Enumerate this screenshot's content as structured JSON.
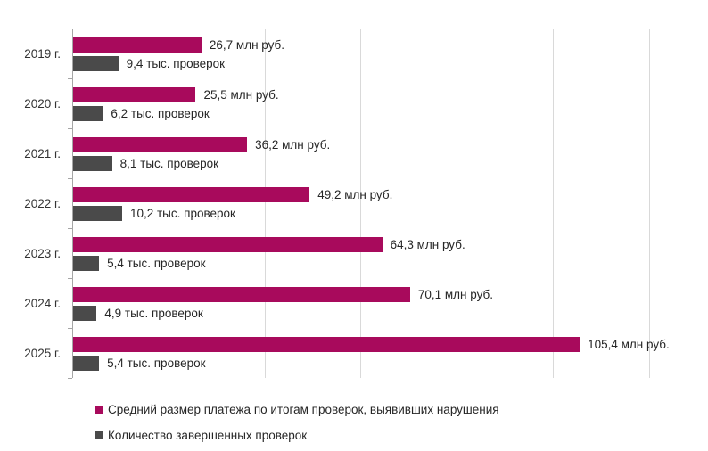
{
  "chart_data": {
    "type": "bar",
    "orientation": "horizontal",
    "title": "",
    "xlabel": "",
    "ylabel": "",
    "categories": [
      "2019 г.",
      "2020 г.",
      "2021 г.",
      "2022 г.",
      "2023 г.",
      "2024 г.",
      "2025 г."
    ],
    "series": [
      {
        "name": "Средний размер платежа по итогам проверок, выявивших нарушения",
        "unit": "млн руб.",
        "color": "#a80a5c",
        "values": [
          26.7,
          25.5,
          36.2,
          49.2,
          64.3,
          70.1,
          105.4
        ],
        "value_labels": [
          "26,7 млн руб.",
          "25,5 млн руб.",
          "36,2 млн руб.",
          "49,2 млн руб.",
          "64,3 млн руб.",
          "70,1 млн руб.",
          "105,4 млн руб."
        ]
      },
      {
        "name": "Количество завершенных проверок",
        "unit": "тыс. проверок",
        "color": "#4a4a4a",
        "values": [
          9.4,
          6.2,
          8.1,
          10.2,
          5.4,
          4.9,
          5.4
        ],
        "value_labels": [
          "9,4 тыс. проверок",
          "6,2 тыс. проверок",
          "8,1 тыс. проверок",
          "10,2 тыс. проверок",
          "5,4 тыс. проверок",
          "4,9 тыс. проверок",
          "5,4 тыс. проверок"
        ]
      }
    ],
    "xlim": [
      0,
      132
    ],
    "gridline_step": 20,
    "grid": true,
    "legend_position": "bottom"
  },
  "colors": {
    "payments_bar": "#a80a5c",
    "inspections_bar": "#4a4a4a",
    "gridline": "#d9d9d9",
    "axis": "#a6a6a6",
    "text": "#262626"
  }
}
